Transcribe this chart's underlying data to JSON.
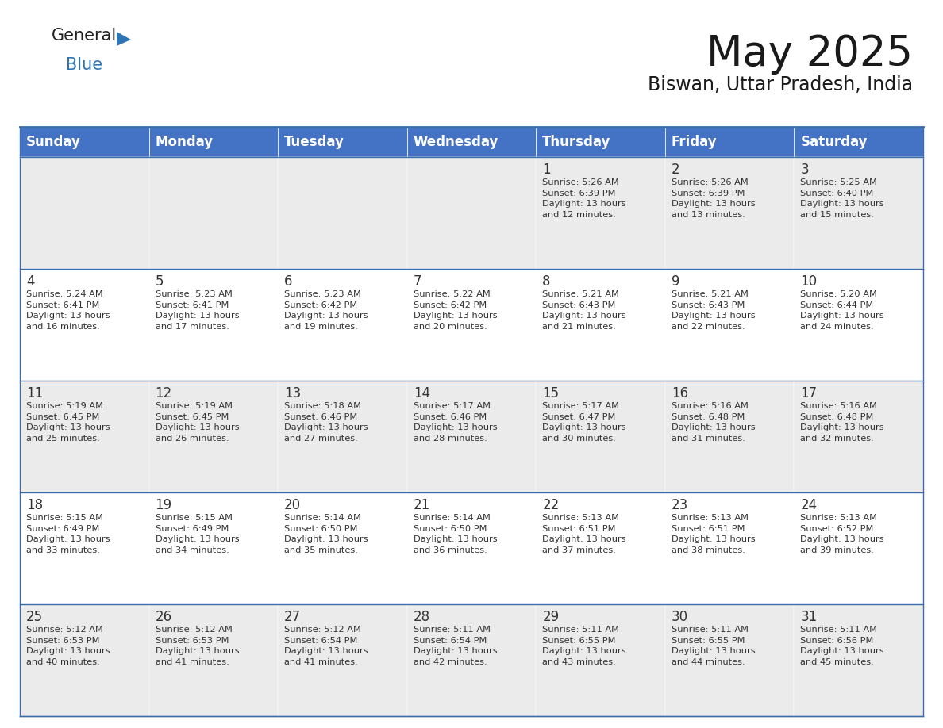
{
  "title": "May 2025",
  "subtitle": "Biswan, Uttar Pradesh, India",
  "header_bg": "#4472C4",
  "header_text_color": "#FFFFFF",
  "header_font_size": 12,
  "day_names": [
    "Sunday",
    "Monday",
    "Tuesday",
    "Wednesday",
    "Thursday",
    "Friday",
    "Saturday"
  ],
  "title_font_size": 38,
  "subtitle_font_size": 17,
  "cell_font_size": 8.2,
  "day_num_font_size": 12,
  "odd_row_bg": "#FFFFFF",
  "even_row_bg": "#EBEBEB",
  "border_color": "#3A6EAA",
  "text_color": "#333333",
  "logo_general_color": "#222222",
  "logo_blue_color": "#2E75B6",
  "logo_triangle_color": "#2E75B6",
  "weeks": [
    [
      {
        "day": 0,
        "text": ""
      },
      {
        "day": 0,
        "text": ""
      },
      {
        "day": 0,
        "text": ""
      },
      {
        "day": 0,
        "text": ""
      },
      {
        "day": 1,
        "text": "Sunrise: 5:26 AM\nSunset: 6:39 PM\nDaylight: 13 hours\nand 12 minutes."
      },
      {
        "day": 2,
        "text": "Sunrise: 5:26 AM\nSunset: 6:39 PM\nDaylight: 13 hours\nand 13 minutes."
      },
      {
        "day": 3,
        "text": "Sunrise: 5:25 AM\nSunset: 6:40 PM\nDaylight: 13 hours\nand 15 minutes."
      }
    ],
    [
      {
        "day": 4,
        "text": "Sunrise: 5:24 AM\nSunset: 6:41 PM\nDaylight: 13 hours\nand 16 minutes."
      },
      {
        "day": 5,
        "text": "Sunrise: 5:23 AM\nSunset: 6:41 PM\nDaylight: 13 hours\nand 17 minutes."
      },
      {
        "day": 6,
        "text": "Sunrise: 5:23 AM\nSunset: 6:42 PM\nDaylight: 13 hours\nand 19 minutes."
      },
      {
        "day": 7,
        "text": "Sunrise: 5:22 AM\nSunset: 6:42 PM\nDaylight: 13 hours\nand 20 minutes."
      },
      {
        "day": 8,
        "text": "Sunrise: 5:21 AM\nSunset: 6:43 PM\nDaylight: 13 hours\nand 21 minutes."
      },
      {
        "day": 9,
        "text": "Sunrise: 5:21 AM\nSunset: 6:43 PM\nDaylight: 13 hours\nand 22 minutes."
      },
      {
        "day": 10,
        "text": "Sunrise: 5:20 AM\nSunset: 6:44 PM\nDaylight: 13 hours\nand 24 minutes."
      }
    ],
    [
      {
        "day": 11,
        "text": "Sunrise: 5:19 AM\nSunset: 6:45 PM\nDaylight: 13 hours\nand 25 minutes."
      },
      {
        "day": 12,
        "text": "Sunrise: 5:19 AM\nSunset: 6:45 PM\nDaylight: 13 hours\nand 26 minutes."
      },
      {
        "day": 13,
        "text": "Sunrise: 5:18 AM\nSunset: 6:46 PM\nDaylight: 13 hours\nand 27 minutes."
      },
      {
        "day": 14,
        "text": "Sunrise: 5:17 AM\nSunset: 6:46 PM\nDaylight: 13 hours\nand 28 minutes."
      },
      {
        "day": 15,
        "text": "Sunrise: 5:17 AM\nSunset: 6:47 PM\nDaylight: 13 hours\nand 30 minutes."
      },
      {
        "day": 16,
        "text": "Sunrise: 5:16 AM\nSunset: 6:48 PM\nDaylight: 13 hours\nand 31 minutes."
      },
      {
        "day": 17,
        "text": "Sunrise: 5:16 AM\nSunset: 6:48 PM\nDaylight: 13 hours\nand 32 minutes."
      }
    ],
    [
      {
        "day": 18,
        "text": "Sunrise: 5:15 AM\nSunset: 6:49 PM\nDaylight: 13 hours\nand 33 minutes."
      },
      {
        "day": 19,
        "text": "Sunrise: 5:15 AM\nSunset: 6:49 PM\nDaylight: 13 hours\nand 34 minutes."
      },
      {
        "day": 20,
        "text": "Sunrise: 5:14 AM\nSunset: 6:50 PM\nDaylight: 13 hours\nand 35 minutes."
      },
      {
        "day": 21,
        "text": "Sunrise: 5:14 AM\nSunset: 6:50 PM\nDaylight: 13 hours\nand 36 minutes."
      },
      {
        "day": 22,
        "text": "Sunrise: 5:13 AM\nSunset: 6:51 PM\nDaylight: 13 hours\nand 37 minutes."
      },
      {
        "day": 23,
        "text": "Sunrise: 5:13 AM\nSunset: 6:51 PM\nDaylight: 13 hours\nand 38 minutes."
      },
      {
        "day": 24,
        "text": "Sunrise: 5:13 AM\nSunset: 6:52 PM\nDaylight: 13 hours\nand 39 minutes."
      }
    ],
    [
      {
        "day": 25,
        "text": "Sunrise: 5:12 AM\nSunset: 6:53 PM\nDaylight: 13 hours\nand 40 minutes."
      },
      {
        "day": 26,
        "text": "Sunrise: 5:12 AM\nSunset: 6:53 PM\nDaylight: 13 hours\nand 41 minutes."
      },
      {
        "day": 27,
        "text": "Sunrise: 5:12 AM\nSunset: 6:54 PM\nDaylight: 13 hours\nand 41 minutes."
      },
      {
        "day": 28,
        "text": "Sunrise: 5:11 AM\nSunset: 6:54 PM\nDaylight: 13 hours\nand 42 minutes."
      },
      {
        "day": 29,
        "text": "Sunrise: 5:11 AM\nSunset: 6:55 PM\nDaylight: 13 hours\nand 43 minutes."
      },
      {
        "day": 30,
        "text": "Sunrise: 5:11 AM\nSunset: 6:55 PM\nDaylight: 13 hours\nand 44 minutes."
      },
      {
        "day": 31,
        "text": "Sunrise: 5:11 AM\nSunset: 6:56 PM\nDaylight: 13 hours\nand 45 minutes."
      }
    ]
  ]
}
